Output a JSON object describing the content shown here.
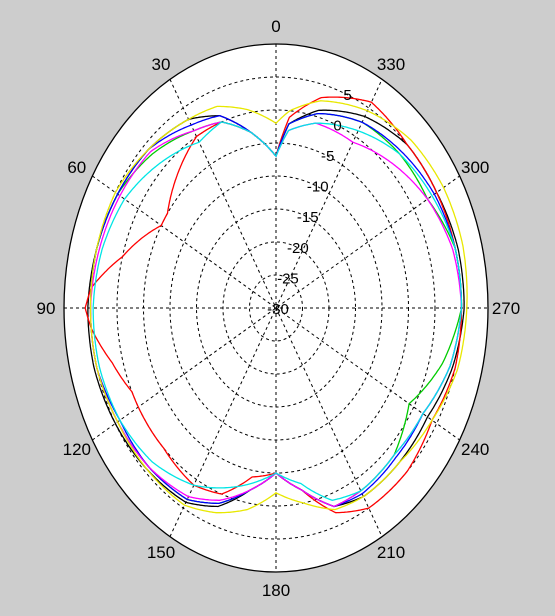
{
  "chart_data": {
    "type": "polar-line",
    "angular_labels": [
      "0",
      "30",
      "60",
      "90",
      "120",
      "150",
      "180",
      "210",
      "240",
      "270",
      "300",
      "330"
    ],
    "radial_ticks": [
      5,
      0,
      -5,
      -10,
      -15,
      -20,
      -25,
      -30
    ],
    "radial_range": [
      -30,
      10
    ],
    "angle_direction": "counterclockwise",
    "zero_position": "top",
    "grid": true,
    "background_color": "#cdcdcd",
    "series": [
      {
        "color": "#000000",
        "points": [
          [
            0,
            -7
          ],
          [
            10,
            -3
          ],
          [
            20,
            1
          ],
          [
            30,
            3
          ],
          [
            45,
            4
          ],
          [
            60,
            4.5
          ],
          [
            75,
            5
          ],
          [
            90,
            5.5
          ],
          [
            105,
            5.5
          ],
          [
            120,
            5
          ],
          [
            135,
            4.5
          ],
          [
            150,
            4
          ],
          [
            160,
            2
          ],
          [
            170,
            -2
          ],
          [
            180,
            -5
          ],
          [
            190,
            -2
          ],
          [
            200,
            2
          ],
          [
            210,
            3
          ],
          [
            225,
            3
          ],
          [
            240,
            3
          ],
          [
            255,
            4.5
          ],
          [
            270,
            5.5
          ],
          [
            285,
            5.5
          ],
          [
            300,
            5
          ],
          [
            315,
            5
          ],
          [
            330,
            3.5
          ],
          [
            345,
            1
          ],
          [
            355,
            -2
          ]
        ]
      },
      {
        "color": "#ff0000",
        "points": [
          [
            0,
            -7
          ],
          [
            10,
            -3
          ],
          [
            20,
            0
          ],
          [
            30,
            0
          ],
          [
            45,
            -3
          ],
          [
            55,
            -5
          ],
          [
            60,
            -5
          ],
          [
            75,
            0
          ],
          [
            85,
            5
          ],
          [
            90,
            6
          ],
          [
            95,
            5
          ],
          [
            105,
            2
          ],
          [
            115,
            0
          ],
          [
            125,
            0
          ],
          [
            135,
            0
          ],
          [
            150,
            1
          ],
          [
            160,
            0
          ],
          [
            170,
            -4
          ],
          [
            180,
            -5
          ],
          [
            190,
            -2
          ],
          [
            200,
            3
          ],
          [
            210,
            5
          ],
          [
            225,
            5
          ],
          [
            240,
            4
          ],
          [
            255,
            5
          ],
          [
            270,
            5
          ],
          [
            285,
            5
          ],
          [
            300,
            5
          ],
          [
            315,
            5
          ],
          [
            330,
            6
          ],
          [
            345,
            3
          ],
          [
            355,
            -1
          ]
        ]
      },
      {
        "color": "#00cc00",
        "points": [
          [
            0,
            -7
          ],
          [
            10,
            -3
          ],
          [
            20,
            0
          ],
          [
            30,
            1
          ],
          [
            45,
            3
          ],
          [
            60,
            4.5
          ],
          [
            75,
            5
          ],
          [
            90,
            5
          ],
          [
            105,
            5
          ],
          [
            120,
            4.5
          ],
          [
            135,
            4
          ],
          [
            150,
            3.5
          ],
          [
            160,
            1.5
          ],
          [
            170,
            -2
          ],
          [
            180,
            -5
          ],
          [
            190,
            -2
          ],
          [
            200,
            2
          ],
          [
            210,
            2
          ],
          [
            225,
            1.5
          ],
          [
            240,
            -1
          ],
          [
            255,
            2.5
          ],
          [
            270,
            5
          ],
          [
            285,
            5
          ],
          [
            300,
            3
          ],
          [
            315,
            3
          ],
          [
            330,
            2.5
          ],
          [
            345,
            0.5
          ],
          [
            355,
            -2
          ]
        ]
      },
      {
        "color": "#0000ff",
        "points": [
          [
            0,
            -7
          ],
          [
            10,
            -3
          ],
          [
            20,
            1
          ],
          [
            30,
            2
          ],
          [
            45,
            4
          ],
          [
            60,
            4.5
          ],
          [
            75,
            5
          ],
          [
            90,
            5
          ],
          [
            105,
            5
          ],
          [
            120,
            4
          ],
          [
            135,
            4
          ],
          [
            150,
            3.5
          ],
          [
            160,
            1.5
          ],
          [
            170,
            -2
          ],
          [
            180,
            -5
          ],
          [
            190,
            -2
          ],
          [
            200,
            2
          ],
          [
            210,
            2.5
          ],
          [
            225,
            2
          ],
          [
            240,
            2
          ],
          [
            255,
            4
          ],
          [
            270,
            5
          ],
          [
            285,
            5
          ],
          [
            300,
            4.5
          ],
          [
            315,
            3.5
          ],
          [
            330,
            2.5
          ],
          [
            345,
            0.5
          ],
          [
            355,
            -2
          ]
        ]
      },
      {
        "color": "#ff00ff",
        "points": [
          [
            0,
            -7
          ],
          [
            10,
            -3
          ],
          [
            20,
            0
          ],
          [
            30,
            1
          ],
          [
            45,
            3.5
          ],
          [
            60,
            4
          ],
          [
            75,
            4.5
          ],
          [
            90,
            5
          ],
          [
            105,
            5
          ],
          [
            120,
            4.5
          ],
          [
            135,
            4
          ],
          [
            150,
            3
          ],
          [
            160,
            1
          ],
          [
            170,
            -2
          ],
          [
            180,
            -5
          ],
          [
            190,
            -2
          ],
          [
            200,
            2
          ],
          [
            210,
            2
          ],
          [
            225,
            1.5
          ],
          [
            240,
            2
          ],
          [
            255,
            4
          ],
          [
            270,
            5
          ],
          [
            285,
            4.5
          ],
          [
            300,
            3
          ],
          [
            315,
            1
          ],
          [
            330,
            -1
          ],
          [
            345,
            -1
          ],
          [
            355,
            -3
          ]
        ]
      },
      {
        "color": "#00e5e5",
        "points": [
          [
            0,
            -7
          ],
          [
            10,
            -3
          ],
          [
            20,
            0
          ],
          [
            30,
            -1
          ],
          [
            45,
            1
          ],
          [
            60,
            3
          ],
          [
            75,
            4
          ],
          [
            90,
            4.5
          ],
          [
            105,
            4.5
          ],
          [
            120,
            4
          ],
          [
            135,
            3
          ],
          [
            150,
            1
          ],
          [
            160,
            -1
          ],
          [
            170,
            -3
          ],
          [
            180,
            -5
          ],
          [
            190,
            -3
          ],
          [
            200,
            1
          ],
          [
            210,
            2
          ],
          [
            225,
            1.5
          ],
          [
            240,
            2
          ],
          [
            255,
            4
          ],
          [
            270,
            5
          ],
          [
            285,
            5
          ],
          [
            300,
            4
          ],
          [
            315,
            3
          ],
          [
            330,
            1
          ],
          [
            345,
            -1
          ],
          [
            355,
            -3
          ]
        ]
      },
      {
        "color": "#e8e800",
        "points": [
          [
            0,
            -2
          ],
          [
            10,
            0.5
          ],
          [
            20,
            2.5
          ],
          [
            30,
            3
          ],
          [
            45,
            4
          ],
          [
            60,
            5
          ],
          [
            75,
            5
          ],
          [
            90,
            5
          ],
          [
            105,
            5
          ],
          [
            120,
            4.5
          ],
          [
            135,
            4.5
          ],
          [
            150,
            4.5
          ],
          [
            160,
            3
          ],
          [
            170,
            1
          ],
          [
            180,
            -2
          ],
          [
            190,
            0
          ],
          [
            200,
            2.5
          ],
          [
            210,
            3
          ],
          [
            225,
            3
          ],
          [
            240,
            4
          ],
          [
            255,
            5.5
          ],
          [
            270,
            6
          ],
          [
            285,
            6.5
          ],
          [
            300,
            6.5
          ],
          [
            315,
            6
          ],
          [
            330,
            4.5
          ],
          [
            345,
            2.5
          ],
          [
            355,
            0
          ]
        ]
      }
    ]
  }
}
